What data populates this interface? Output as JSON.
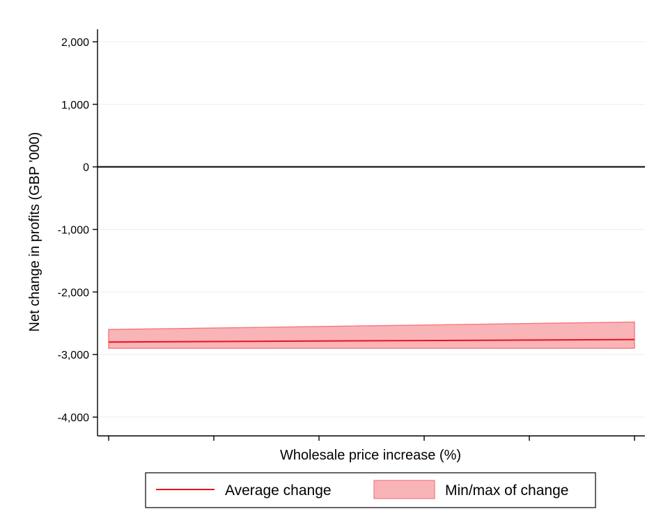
{
  "chart_data": {
    "type": "line",
    "title": "",
    "xlabel": "Wholesale price increase (%)",
    "ylabel": "Net change in profits (GBP '000)",
    "x_ticks_labeled": false,
    "x_tick_count": 6,
    "xlim": [
      0,
      5
    ],
    "ylim": [
      -4300,
      2200
    ],
    "yticks": [
      2000,
      1000,
      0,
      -1000,
      -2000,
      -3000,
      -4000
    ],
    "ytick_labels": [
      "2,000",
      "1,000",
      "0",
      "-1,000",
      "-2,000",
      "-3,000",
      "-4,000"
    ],
    "grid": "horizontal",
    "reference_line": {
      "y": 0,
      "color": "#000000"
    },
    "series": [
      {
        "name": "Average change",
        "kind": "line",
        "color": "#e8151b",
        "points": [
          {
            "x": 0,
            "y": -2800
          },
          {
            "x": 5,
            "y": -2760
          }
        ]
      },
      {
        "name": "Min/max of change",
        "kind": "band",
        "fill": "#f9b4b7",
        "stroke": "#f4777c",
        "points": [
          {
            "x": 0,
            "ymin": -2900,
            "ymax": -2600
          },
          {
            "x": 5,
            "ymin": -2900,
            "ymax": -2480
          }
        ]
      }
    ],
    "legend": {
      "position": "bottom",
      "items": [
        "Average change",
        "Min/max of change"
      ]
    }
  }
}
